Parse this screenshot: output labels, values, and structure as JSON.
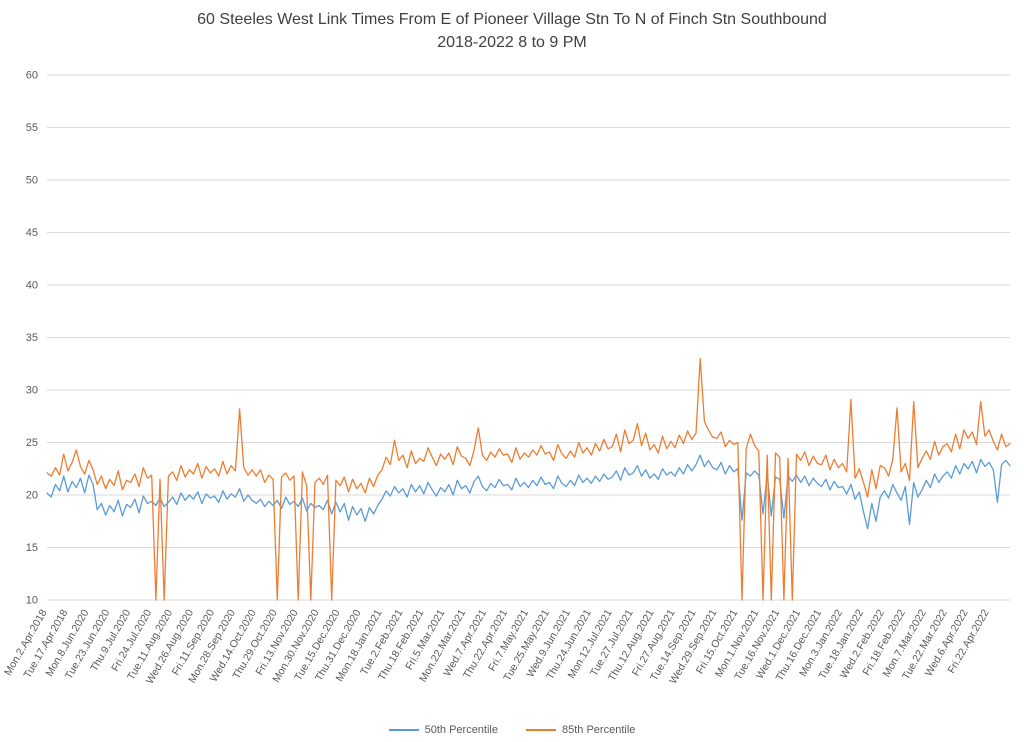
{
  "colors": {
    "series_50th": "#5B9BD5",
    "series_85th": "#ED7D31",
    "gridline": "#D9D9D9",
    "axis_text": "#595959",
    "title_text": "#404040"
  },
  "chart_data": {
    "type": "line",
    "title": "60 Steeles West Link Times From E of Pioneer Village Stn To N of Finch Stn Southbound 2018-2022 8 to 9 PM",
    "title_lines": [
      "60 Steeles West Link Times From E of Pioneer Village Stn To N of Finch Stn Southbound",
      "2018-2022 8 to 9 PM"
    ],
    "xlabel": "",
    "ylabel": "",
    "ylim": [
      10,
      60
    ],
    "yticks": [
      10,
      15,
      20,
      25,
      30,
      35,
      40,
      45,
      50,
      55,
      60
    ],
    "grid": true,
    "legend_position": "bottom",
    "points_per_tick": 5,
    "x_tick_labels": [
      "Mon.2.Apr.2018",
      "Tue.17.Apr.2018",
      "Mon.8.Jun.2020",
      "Tue.23.Jun.2020",
      "Thu.9.Jul.2020",
      "Fri.24.Jul.2020",
      "Tue.11.Aug.2020",
      "Wed.26.Aug.2020",
      "Fri.11.Sep.2020",
      "Mon.28.Sep.2020",
      "Wed.14.Oct.2020",
      "Thu.29.Oct.2020",
      "Fri.13.Nov.2020",
      "Mon.30.Nov.2020",
      "Tue.15.Dec.2020",
      "Thu.31.Dec.2020",
      "Mon.18.Jan.2021",
      "Tue.2.Feb.2021",
      "Thu.18.Feb.2021",
      "Fri.5.Mar.2021",
      "Mon.22.Mar.2021",
      "Wed.7.Apr.2021",
      "Thu.22.Apr.2021",
      "Fri.7.May.2021",
      "Tue.25.May.2021",
      "Wed.9.Jun.2021",
      "Thu.24.Jun.2021",
      "Mon.12.Jul.2021",
      "Tue.27.Jul.2021",
      "Thu.12.Aug.2021",
      "Fri.27.Aug.2021",
      "Tue.14.Sep.2021",
      "Wed.29.Sep.2021",
      "Fri.15.Oct.2021",
      "Mon.1.Nov.2021",
      "Tue.16.Nov.2021",
      "Wed.1.Dec.2021",
      "Thu.16.Dec.2021",
      "Mon.3.Jan.2022",
      "Tue.18.Jan.2022",
      "Wed.2.Feb.2022",
      "Fri.18.Feb.2022",
      "Mon.7.Mar.2022",
      "Tue.22.Mar.2022",
      "Wed.6.Apr.2022",
      "Fri.22.Apr.2022"
    ],
    "series": [
      {
        "name": "50th Percentile",
        "color": "#5B9BD5",
        "values": [
          20.2,
          19.8,
          21.0,
          20.4,
          21.8,
          20.3,
          21.3,
          20.7,
          21.6,
          20.2,
          21.9,
          21.0,
          18.6,
          19.2,
          18.1,
          19.0,
          18.4,
          19.5,
          18.0,
          19.1,
          18.8,
          19.6,
          18.3,
          19.9,
          19.2,
          19.4,
          19.0,
          19.7,
          18.9,
          19.3,
          19.8,
          19.1,
          20.2,
          19.5,
          20.0,
          19.6,
          20.3,
          19.2,
          20.1,
          19.7,
          19.9,
          19.3,
          20.4,
          19.6,
          20.1,
          19.8,
          20.6,
          19.4,
          20.0,
          19.5,
          19.2,
          19.6,
          18.9,
          19.4,
          19.0,
          19.5,
          18.7,
          19.8,
          19.1,
          19.4,
          18.9,
          19.7,
          18.5,
          19.2,
          18.8,
          19.0,
          18.6,
          19.5,
          18.2,
          19.3,
          18.4,
          19.2,
          17.6,
          18.9,
          18.1,
          18.7,
          17.5,
          18.8,
          18.2,
          19.0,
          19.6,
          20.4,
          19.9,
          20.8,
          20.2,
          20.6,
          19.8,
          21.0,
          20.3,
          20.9,
          20.1,
          21.2,
          20.5,
          19.9,
          20.7,
          20.3,
          21.0,
          20.0,
          21.4,
          20.6,
          20.9,
          20.2,
          21.3,
          21.8,
          20.8,
          20.4,
          21.1,
          20.7,
          21.5,
          20.9,
          21.0,
          20.5,
          21.6,
          20.8,
          21.2,
          20.7,
          21.4,
          20.9,
          21.7,
          21.0,
          21.2,
          20.6,
          21.8,
          21.1,
          20.8,
          21.4,
          20.9,
          21.9,
          21.2,
          21.6,
          21.1,
          21.8,
          21.3,
          22.0,
          21.5,
          21.7,
          22.3,
          21.4,
          22.6,
          21.9,
          22.1,
          22.8,
          21.8,
          22.4,
          21.6,
          22.0,
          21.5,
          22.5,
          21.9,
          22.2,
          21.8,
          22.6,
          22.0,
          22.9,
          22.3,
          22.9,
          23.8,
          22.7,
          23.3,
          22.6,
          22.4,
          23.1,
          22.0,
          22.8,
          22.2,
          22.5,
          17.6,
          22.1,
          21.8,
          22.3,
          21.9,
          18.2,
          22.0,
          18.0,
          21.7,
          21.5,
          17.8,
          21.8,
          21.3,
          21.9,
          21.2,
          21.8,
          20.9,
          21.6,
          21.1,
          20.8,
          21.5,
          20.5,
          21.3,
          20.7,
          20.8,
          20.1,
          21.0,
          19.6,
          20.3,
          18.4,
          16.8,
          19.2,
          17.5,
          19.8,
          20.4,
          19.7,
          21.0,
          20.2,
          19.5,
          20.8,
          17.2,
          21.2,
          19.8,
          20.5,
          21.4,
          20.7,
          22.0,
          21.2,
          21.8,
          22.2,
          21.6,
          22.8,
          22.0,
          23.0,
          22.5,
          23.2,
          22.1,
          23.4,
          22.7,
          23.1,
          22.4,
          19.3,
          22.9,
          23.3,
          22.8
        ]
      },
      {
        "name": "85th Percentile",
        "color": "#ED7D31",
        "values": [
          22.1,
          21.8,
          22.6,
          21.9,
          23.9,
          22.3,
          23.1,
          24.3,
          22.7,
          22.0,
          23.3,
          22.4,
          21.0,
          21.8,
          20.6,
          21.5,
          20.9,
          22.3,
          20.5,
          21.4,
          21.2,
          22.0,
          20.8,
          22.6,
          21.6,
          21.9,
          10.0,
          21.5,
          10.0,
          21.8,
          22.2,
          21.4,
          22.8,
          21.7,
          22.4,
          22.0,
          23.0,
          21.6,
          22.7,
          22.1,
          22.5,
          21.8,
          23.2,
          22.0,
          22.8,
          22.3,
          28.2,
          22.6,
          21.9,
          22.4,
          21.8,
          22.4,
          21.2,
          21.9,
          21.5,
          10.0,
          21.7,
          22.1,
          21.4,
          21.8,
          10.0,
          22.2,
          20.9,
          10.0,
          21.2,
          21.6,
          21.0,
          21.9,
          10.0,
          21.4,
          20.9,
          21.7,
          20.3,
          21.5,
          20.6,
          21.1,
          20.2,
          21.6,
          20.8,
          21.9,
          22.4,
          23.6,
          22.9,
          25.2,
          23.3,
          23.8,
          22.6,
          24.2,
          23.0,
          23.5,
          23.2,
          24.5,
          23.6,
          22.8,
          23.9,
          23.4,
          24.0,
          22.9,
          24.6,
          23.7,
          23.5,
          22.8,
          24.3,
          26.4,
          23.8,
          23.3,
          24.1,
          23.6,
          24.4,
          23.8,
          23.9,
          23.1,
          24.5,
          23.4,
          24.0,
          23.6,
          24.3,
          23.8,
          24.7,
          23.9,
          24.1,
          23.3,
          24.8,
          23.9,
          23.5,
          24.2,
          23.6,
          25.0,
          24.0,
          24.5,
          23.8,
          24.9,
          24.2,
          25.3,
          24.4,
          24.6,
          25.8,
          24.1,
          26.2,
          24.9,
          25.2,
          26.8,
          24.7,
          25.9,
          24.3,
          24.8,
          24.0,
          25.6,
          24.4,
          25.1,
          24.5,
          25.7,
          24.9,
          26.1,
          25.3,
          25.9,
          33.0,
          27.0,
          26.2,
          25.5,
          25.4,
          26.0,
          24.6,
          25.2,
          24.8,
          25.0,
          10.0,
          24.4,
          25.8,
          24.7,
          24.2,
          10.0,
          23.8,
          10.0,
          24.0,
          23.6,
          10.0,
          23.5,
          10.0,
          23.9,
          23.3,
          24.1,
          22.8,
          23.7,
          23.0,
          22.9,
          23.8,
          22.4,
          23.4,
          22.6,
          23.0,
          22.2,
          29.1,
          21.6,
          22.5,
          21.2,
          19.8,
          22.4,
          20.6,
          22.8,
          22.6,
          21.8,
          23.4,
          28.3,
          22.2,
          23.0,
          21.4,
          28.9,
          22.6,
          23.5,
          24.2,
          23.4,
          25.1,
          23.8,
          24.6,
          24.9,
          24.1,
          25.8,
          24.4,
          26.2,
          25.4,
          26.0,
          24.8,
          28.9,
          25.6,
          26.2,
          25.1,
          24.3,
          25.8,
          24.6,
          24.9
        ]
      }
    ]
  }
}
